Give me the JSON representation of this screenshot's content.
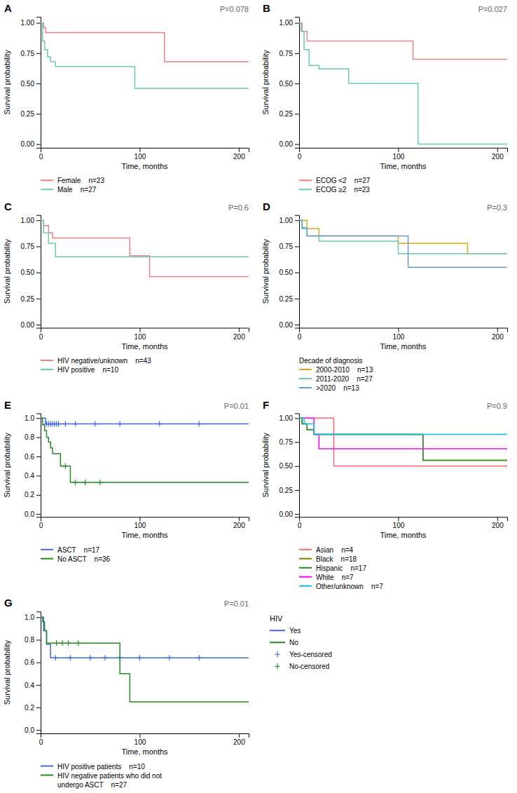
{
  "chart_data": [
    {
      "type": "step",
      "title": "A",
      "annotations": [
        "P=0.078"
      ],
      "xlabel": "Time, months",
      "ylabel": "Survival probability",
      "xlim": [
        0,
        210
      ],
      "ylim": [
        -0.03,
        1.05
      ],
      "xticks": [
        0,
        100,
        200
      ],
      "yticks": [
        {
          "value": 0.0,
          "label": "0.00"
        },
        0.25,
        {
          "value": 0.5,
          "label": "0.50"
        },
        0.75,
        {
          "value": 1.0,
          "label": "1.00"
        }
      ],
      "legend": "bottom",
      "series": [
        {
          "name": "Female    n=23",
          "color": "#F08080",
          "x": [
            0,
            3,
            5,
            8,
            120,
            125,
            210
          ],
          "values": [
            1.0,
            0.96,
            0.92,
            0.92,
            0.92,
            0.68,
            0.68
          ]
        },
        {
          "name": "Male    n=27",
          "color": "#66CDAA",
          "x": [
            0,
            2,
            4,
            7,
            10,
            15,
            90,
            95,
            210
          ],
          "values": [
            1.0,
            0.85,
            0.78,
            0.72,
            0.68,
            0.64,
            0.64,
            0.46,
            0.46
          ]
        }
      ]
    },
    {
      "type": "step",
      "title": "B",
      "annotations": [
        "P=0.027"
      ],
      "xlabel": "Time, months",
      "ylabel": "Survival probability",
      "xlim": [
        0,
        210
      ],
      "ylim": [
        -0.03,
        1.05
      ],
      "xticks": [
        0,
        100,
        200
      ],
      "yticks": [
        {
          "value": 0.0,
          "label": "0.00"
        },
        0.25,
        {
          "value": 0.5,
          "label": "0.50"
        },
        0.75,
        {
          "value": 1.0,
          "label": "1.00"
        }
      ],
      "legend": "bottom",
      "series": [
        {
          "name": "ECOG <2    n=27",
          "color": "#F08080",
          "x": [
            0,
            3,
            8,
            95,
            115,
            170,
            210
          ],
          "values": [
            1.0,
            0.93,
            0.85,
            0.85,
            0.7,
            0.7,
            0.7
          ]
        },
        {
          "name": "ECOG ≥2    n=23",
          "color": "#66CDAA",
          "x": [
            0,
            2,
            5,
            10,
            20,
            50,
            115,
            120,
            210
          ],
          "values": [
            1.0,
            0.93,
            0.78,
            0.65,
            0.62,
            0.5,
            0.5,
            0.0,
            0.0
          ]
        }
      ]
    },
    {
      "type": "step",
      "title": "C",
      "annotations": [
        "P=0.6"
      ],
      "xlabel": "Time, months",
      "ylabel": "Survival probability",
      "xlim": [
        0,
        210
      ],
      "ylim": [
        -0.03,
        1.05
      ],
      "xticks": [
        0,
        100,
        200
      ],
      "yticks": [
        {
          "value": 0.0,
          "label": "0.00"
        },
        0.25,
        {
          "value": 0.5,
          "label": "0.50"
        },
        0.75,
        {
          "value": 1.0,
          "label": "1.00"
        }
      ],
      "legend": "bottom",
      "series": [
        {
          "name": "HIV negative/unknown    n=43",
          "color": "#F08080",
          "x": [
            0,
            3,
            8,
            12,
            80,
            90,
            110,
            170,
            210
          ],
          "values": [
            1.0,
            0.95,
            0.88,
            0.83,
            0.83,
            0.66,
            0.46,
            0.46,
            0.46
          ]
        },
        {
          "name": "HIV positive    n=10",
          "color": "#66CDAA",
          "x": [
            0,
            3,
            8,
            15,
            170,
            210
          ],
          "values": [
            1.0,
            0.88,
            0.78,
            0.65,
            0.65,
            0.65
          ]
        }
      ]
    },
    {
      "type": "step",
      "title": "D",
      "annotations": [
        "P=0.3"
      ],
      "xlabel": "Time, months",
      "ylabel": "Survival probability",
      "xlim": [
        0,
        210
      ],
      "ylim": [
        -0.03,
        1.05
      ],
      "xticks": [
        0,
        100,
        200
      ],
      "yticks": [
        {
          "value": 0.0,
          "label": "0.00"
        },
        0.25,
        {
          "value": 0.5,
          "label": "0.50"
        },
        0.75,
        {
          "value": 1.0,
          "label": "1.00"
        }
      ],
      "legend": "bottom",
      "legend_title": "Decade of diagnosis",
      "series": [
        {
          "name": "2000-2010    n=13",
          "color": "#DAA520",
          "x": [
            0,
            3,
            8,
            20,
            90,
            100,
            170,
            210
          ],
          "values": [
            1.0,
            1.0,
            0.92,
            0.85,
            0.85,
            0.78,
            0.68,
            0.68
          ]
        },
        {
          "name": "2011-2020    n=27",
          "color": "#66CDAA",
          "x": [
            0,
            3,
            8,
            20,
            90,
            100,
            210
          ],
          "values": [
            1.0,
            0.93,
            0.85,
            0.8,
            0.8,
            0.68,
            0.68
          ]
        },
        {
          "name": ">2020    n=13",
          "color": "#6699CC",
          "x": [
            0,
            3,
            8,
            100,
            110,
            210
          ],
          "values": [
            1.0,
            0.92,
            0.85,
            0.85,
            0.55,
            0.55
          ]
        }
      ]
    },
    {
      "type": "step",
      "title": "E",
      "annotations": [
        "P=0.01"
      ],
      "xlabel": "Time, months",
      "ylabel": "Survival probability",
      "xlim": [
        0,
        210
      ],
      "ylim": [
        -0.03,
        1.05
      ],
      "xticks": [
        0,
        100,
        200
      ],
      "yticks": [
        {
          "value": 0.0,
          "label": "0.0"
        },
        0.2,
        0.4,
        0.6,
        0.8,
        {
          "value": 1.0,
          "label": "1.0"
        }
      ],
      "legend": "bottom",
      "series": [
        {
          "name": "ASCT    n=17",
          "color": "#4169E1",
          "x": [
            0,
            5,
            210
          ],
          "values": [
            1.0,
            0.94,
            0.94
          ]
        },
        {
          "type": "scatter",
          "marker": "plus",
          "color": "#4169E1",
          "x": [
            6,
            8,
            10,
            12,
            14,
            16,
            18,
            25,
            35,
            55,
            80,
            120,
            160
          ],
          "values": [
            0.94,
            0.94,
            0.94,
            0.94,
            0.94,
            0.94,
            0.94,
            0.94,
            0.94,
            0.94,
            0.94,
            0.94,
            0.94
          ]
        },
        {
          "name": "No ASCT    n=36",
          "color": "#228B22",
          "x": [
            0,
            2,
            4,
            6,
            8,
            10,
            12,
            14,
            16,
            20,
            30,
            90,
            120,
            185,
            210
          ],
          "values": [
            1.0,
            0.93,
            0.87,
            0.8,
            0.75,
            0.69,
            0.63,
            0.63,
            0.63,
            0.5,
            0.33,
            0.33,
            0.33,
            0.33,
            0.33
          ]
        },
        {
          "type": "scatter",
          "marker": "plus",
          "color": "#228B22",
          "x": [
            25,
            35,
            45,
            60
          ],
          "values": [
            0.5,
            0.33,
            0.33,
            0.33
          ]
        }
      ]
    },
    {
      "type": "step",
      "title": "F",
      "annotations": [
        "P=0.9"
      ],
      "xlabel": "Time, months",
      "ylabel": "Survival probability",
      "xlim": [
        0,
        210
      ],
      "ylim": [
        -0.03,
        1.05
      ],
      "xticks": [
        0,
        100,
        200
      ],
      "yticks": [
        {
          "value": 0.0,
          "label": "0.00"
        },
        0.25,
        {
          "value": 0.5,
          "label": "0.50"
        },
        0.75,
        {
          "value": 1.0,
          "label": "1.00"
        }
      ],
      "legend": "bottom",
      "series": [
        {
          "name": "Asian    n=4",
          "color": "#FF6666",
          "x": [
            0,
            5,
            30,
            35,
            125,
            210
          ],
          "values": [
            1.0,
            1.0,
            1.0,
            0.5,
            0.5,
            0.5
          ]
        },
        {
          "name": "Black    n=18",
          "color": "#8B8000",
          "x": [
            0,
            3,
            8,
            15,
            120,
            125,
            210
          ],
          "values": [
            1.0,
            0.94,
            0.88,
            0.83,
            0.83,
            0.56,
            0.56
          ]
        },
        {
          "name": "Hispanic    n=17",
          "color": "#228B22",
          "x": [
            0,
            3,
            8,
            15,
            120,
            125,
            210
          ],
          "values": [
            1.0,
            0.94,
            0.88,
            0.83,
            0.83,
            0.56,
            0.56
          ]
        },
        {
          "name": "White    n=7",
          "color": "#FF00FF",
          "x": [
            0,
            5,
            15,
            20,
            70,
            210
          ],
          "values": [
            1.0,
            1.0,
            0.83,
            0.68,
            0.68,
            0.68
          ]
        },
        {
          "name": "Other/unknown    n=7",
          "color": "#00BFFF",
          "x": [
            0,
            5,
            15,
            120,
            210
          ],
          "values": [
            1.0,
            0.94,
            0.83,
            0.83,
            0.83
          ]
        }
      ]
    },
    {
      "type": "step",
      "title": "G",
      "annotations": [
        "P=0.01"
      ],
      "xlabel": "Time, months",
      "ylabel": "Survival probability",
      "xlim": [
        0,
        210
      ],
      "ylim": [
        -0.03,
        1.05
      ],
      "xticks": [
        0,
        100,
        200
      ],
      "yticks": [
        {
          "value": 0.0,
          "label": "0.0"
        },
        0.2,
        0.4,
        0.6,
        0.8,
        {
          "value": 1.0,
          "label": "1.0"
        }
      ],
      "legend": "bottom",
      "series": [
        {
          "name": "HIV positive patients    n=10",
          "color": "#4169E1",
          "x": [
            0,
            3,
            6,
            10,
            12,
            210
          ],
          "values": [
            1.0,
            0.88,
            0.76,
            0.64,
            0.64,
            0.64
          ]
        },
        {
          "type": "scatter",
          "marker": "plus",
          "color": "#4169E1",
          "x": [
            15,
            30,
            50,
            65,
            80,
            100,
            130,
            160
          ],
          "values": [
            0.64,
            0.64,
            0.64,
            0.64,
            0.64,
            0.64,
            0.64,
            0.64
          ]
        },
        {
          "name": "HIV negative patients who did not\nundergo ASCT    n=27",
          "color": "#228B22",
          "x": [
            0,
            2,
            4,
            6,
            8,
            10,
            12,
            14,
            80,
            90,
            120,
            210
          ],
          "values": [
            1.0,
            0.96,
            0.88,
            0.77,
            0.77,
            0.77,
            0.77,
            0.77,
            0.5,
            0.25,
            0.25,
            0.25
          ]
        },
        {
          "type": "scatter",
          "marker": "plus",
          "color": "#228B22",
          "x": [
            16,
            22,
            28,
            38
          ],
          "values": [
            0.77,
            0.77,
            0.77,
            0.77
          ]
        }
      ],
      "extra_legend": {
        "title": "HIV",
        "entries": [
          {
            "name": "Yes",
            "color": "#4169E1",
            "marker": "line"
          },
          {
            "name": "No",
            "color": "#228B22",
            "marker": "line"
          },
          {
            "name": "Yes-censored",
            "color": "#4169E1",
            "marker": "plus"
          },
          {
            "name": "No-censored",
            "color": "#228B22",
            "marker": "plus"
          }
        ]
      }
    }
  ]
}
